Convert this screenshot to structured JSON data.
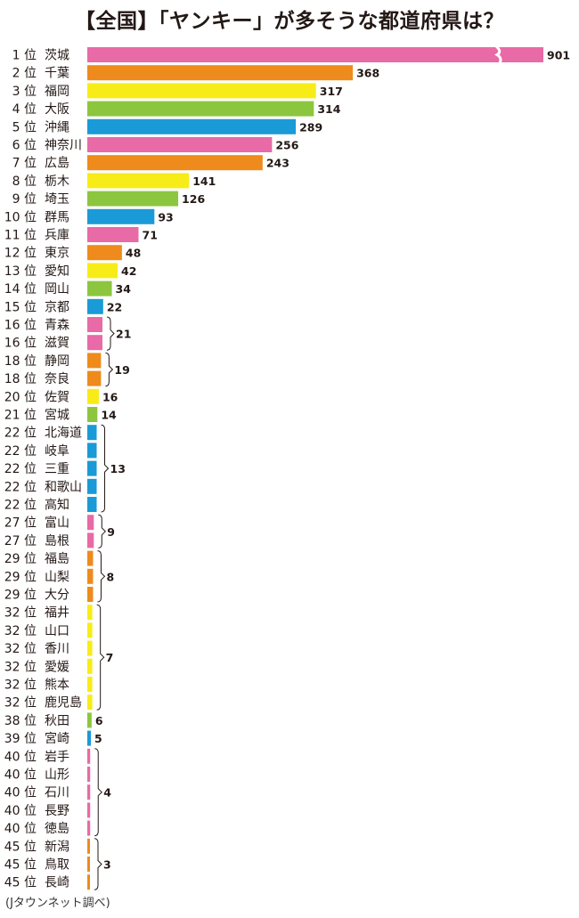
{
  "title": "【全国】「ヤンキー」が多そうな都道府県は？",
  "source": "(Jタウンネット調べ)",
  "rank_suffix": "位",
  "colors": {
    "pink": "#e86aa6",
    "orange": "#ef8a1c",
    "yellow": "#f7ec18",
    "green": "#8cc63f",
    "blue": "#1a9ad6"
  },
  "chart_data": {
    "type": "bar",
    "orientation": "horizontal",
    "axis_break_on_first_bar": true,
    "color_cycle": [
      "pink",
      "orange",
      "yellow",
      "green",
      "blue"
    ],
    "rows": [
      {
        "rank": "1",
        "name": "茨城",
        "value": 901
      },
      {
        "rank": "2",
        "name": "千葉",
        "value": 368
      },
      {
        "rank": "3",
        "name": "福岡",
        "value": 317
      },
      {
        "rank": "4",
        "name": "大阪",
        "value": 314
      },
      {
        "rank": "5",
        "name": "沖縄",
        "value": 289
      },
      {
        "rank": "6",
        "name": "神奈川",
        "value": 256
      },
      {
        "rank": "7",
        "name": "広島",
        "value": 243
      },
      {
        "rank": "8",
        "name": "栃木",
        "value": 141
      },
      {
        "rank": "9",
        "name": "埼玉",
        "value": 126
      },
      {
        "rank": "10",
        "name": "群馬",
        "value": 93
      },
      {
        "rank": "11",
        "name": "兵庫",
        "value": 71
      },
      {
        "rank": "12",
        "name": "東京",
        "value": 48
      },
      {
        "rank": "13",
        "name": "愛知",
        "value": 42
      },
      {
        "rank": "14",
        "name": "岡山",
        "value": 34
      },
      {
        "rank": "15",
        "name": "京都",
        "value": 22
      },
      {
        "rank": "16",
        "name": "青森",
        "value": 21
      },
      {
        "rank": "16",
        "name": "滋賀",
        "value": 21
      },
      {
        "rank": "18",
        "name": "静岡",
        "value": 19
      },
      {
        "rank": "18",
        "name": "奈良",
        "value": 19
      },
      {
        "rank": "20",
        "name": "佐賀",
        "value": 16
      },
      {
        "rank": "21",
        "name": "宮城",
        "value": 14
      },
      {
        "rank": "22",
        "name": "北海道",
        "value": 13
      },
      {
        "rank": "22",
        "name": "岐阜",
        "value": 13
      },
      {
        "rank": "22",
        "name": "三重",
        "value": 13
      },
      {
        "rank": "22",
        "name": "和歌山",
        "value": 13
      },
      {
        "rank": "22",
        "name": "高知",
        "value": 13
      },
      {
        "rank": "27",
        "name": "富山",
        "value": 9
      },
      {
        "rank": "27",
        "name": "島根",
        "value": 9
      },
      {
        "rank": "29",
        "name": "福島",
        "value": 8
      },
      {
        "rank": "29",
        "name": "山梨",
        "value": 8
      },
      {
        "rank": "29",
        "name": "大分",
        "value": 8
      },
      {
        "rank": "32",
        "name": "福井",
        "value": 7
      },
      {
        "rank": "32",
        "name": "山口",
        "value": 7
      },
      {
        "rank": "32",
        "name": "香川",
        "value": 7
      },
      {
        "rank": "32",
        "name": "愛媛",
        "value": 7
      },
      {
        "rank": "32",
        "name": "熊本",
        "value": 7
      },
      {
        "rank": "32",
        "name": "鹿児島",
        "value": 7
      },
      {
        "rank": "38",
        "name": "秋田",
        "value": 6
      },
      {
        "rank": "39",
        "name": "宮崎",
        "value": 5
      },
      {
        "rank": "40",
        "name": "岩手",
        "value": 4
      },
      {
        "rank": "40",
        "name": "山形",
        "value": 4
      },
      {
        "rank": "40",
        "name": "石川",
        "value": 4
      },
      {
        "rank": "40",
        "name": "長野",
        "value": 4
      },
      {
        "rank": "40",
        "name": "徳島",
        "value": 4
      },
      {
        "rank": "45",
        "name": "新潟",
        "value": 3
      },
      {
        "rank": "45",
        "name": "鳥取",
        "value": 3
      },
      {
        "rank": "45",
        "name": "長崎",
        "value": 3
      }
    ]
  }
}
